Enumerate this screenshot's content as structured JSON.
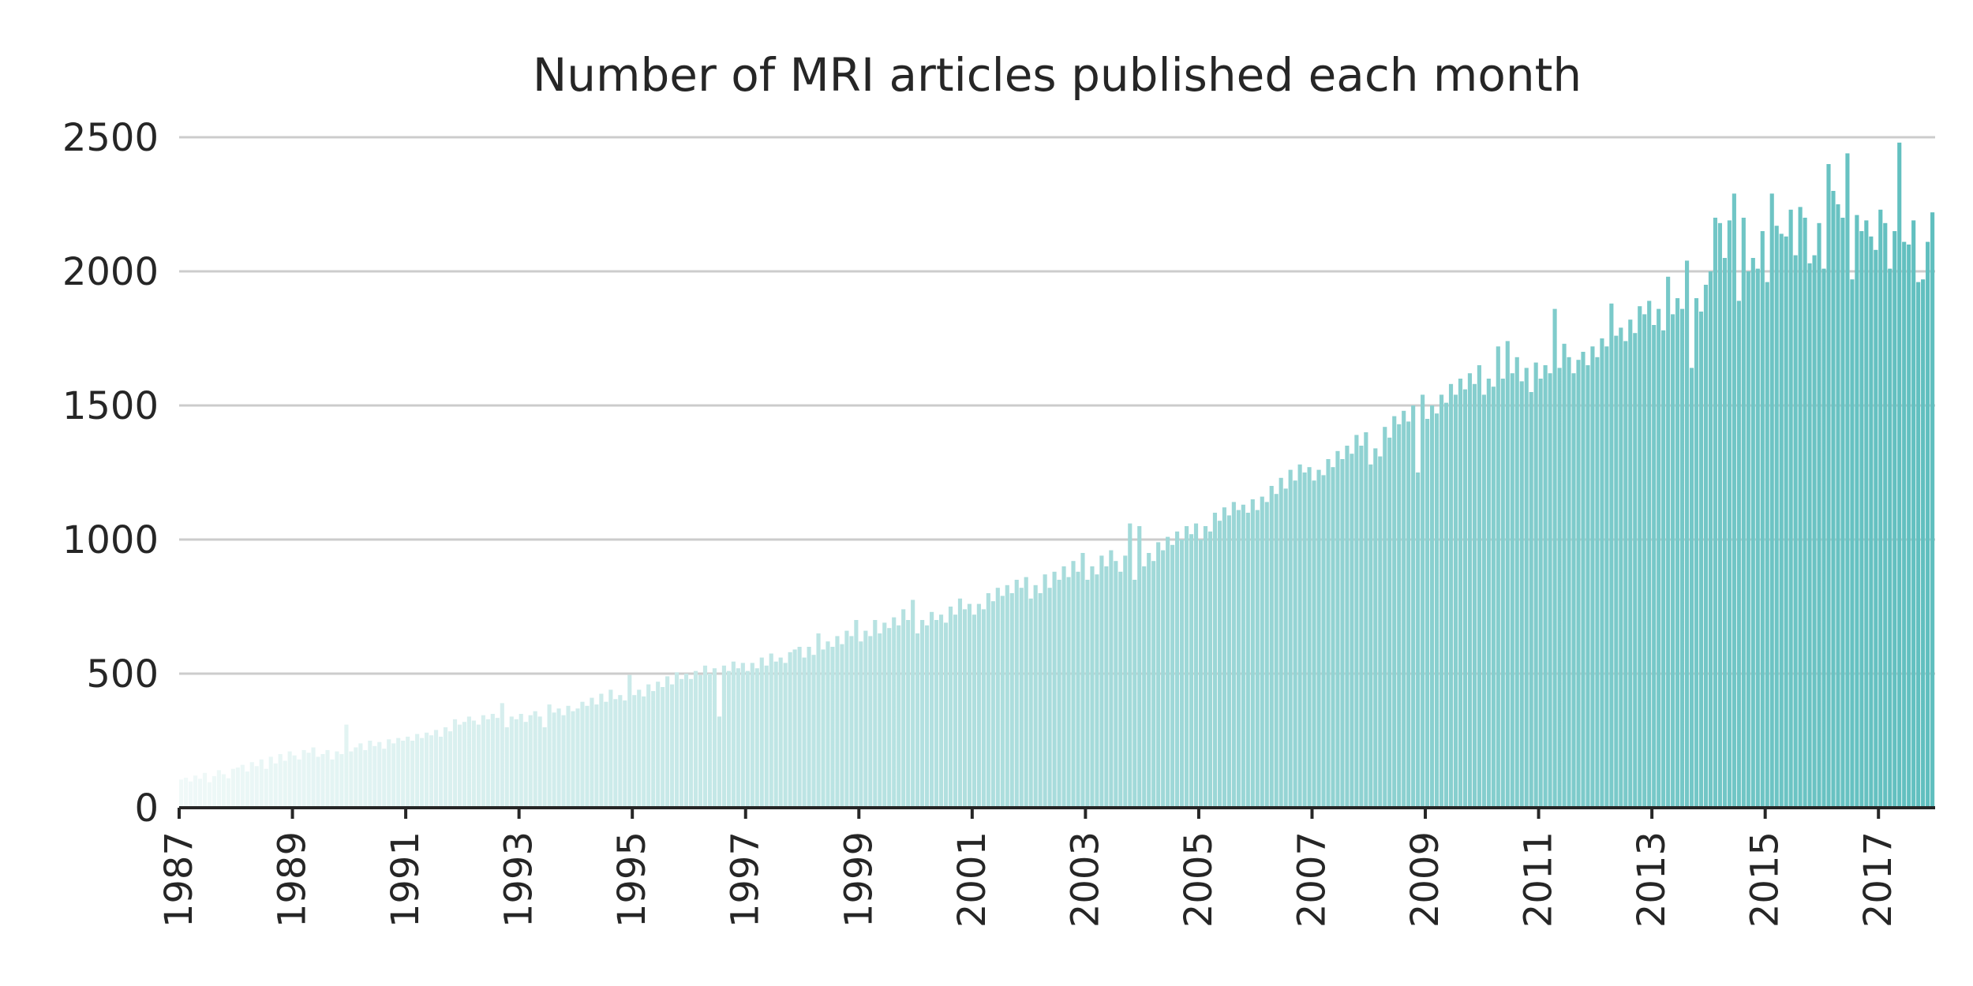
{
  "chart_data": {
    "type": "bar",
    "title": "Number of MRI articles published each month",
    "xlabel": "",
    "ylabel": "",
    "x_range": [
      "1987-01",
      "2017-12"
    ],
    "ylim": [
      0,
      2500
    ],
    "y_ticks": [
      "0",
      "500",
      "1000",
      "1500",
      "2000",
      "2500"
    ],
    "x_ticks": [
      "1987",
      "1989",
      "1991",
      "1993",
      "1995",
      "1997",
      "1999",
      "2001",
      "2003",
      "2005",
      "2007",
      "2009",
      "2011",
      "2013",
      "2015",
      "2017"
    ],
    "grid": "horizontal",
    "color_gradient": [
      "#f0f9f8",
      "#60bfbf"
    ],
    "grid_color": "#cccccc",
    "axis_color": "#262626",
    "series": [
      {
        "start": "1987-01",
        "interval": "month",
        "annual_monthly_values": {
          "1987": [
            105,
            112,
            98,
            120,
            108,
            130,
            95,
            118,
            140,
            125,
            110,
            145
          ],
          "1988": [
            150,
            160,
            135,
            170,
            155,
            180,
            145,
            190,
            165,
            200,
            175,
            210
          ],
          "1989": [
            195,
            180,
            215,
            205,
            225,
            190,
            200,
            215,
            180,
            210,
            200,
            310
          ],
          "1990": [
            210,
            225,
            240,
            215,
            250,
            230,
            245,
            220,
            255,
            240,
            260,
            250
          ],
          "1991": [
            265,
            250,
            275,
            260,
            280,
            270,
            290,
            265,
            300,
            285,
            330,
            310
          ],
          "1992": [
            320,
            340,
            325,
            310,
            345,
            330,
            350,
            335,
            390,
            300,
            340,
            330
          ],
          "1993": [
            350,
            320,
            345,
            360,
            340,
            300,
            385,
            355,
            370,
            345,
            380,
            360
          ],
          "1994": [
            370,
            395,
            380,
            410,
            385,
            425,
            395,
            440,
            405,
            420,
            400,
            495
          ],
          "1995": [
            420,
            440,
            415,
            460,
            435,
            470,
            450,
            490,
            460,
            505,
            480,
            500
          ],
          "1996": [
            480,
            510,
            495,
            530,
            500,
            520,
            340,
            530,
            510,
            545,
            520,
            540
          ],
          "1997": [
            510,
            540,
            520,
            560,
            530,
            575,
            545,
            560,
            540,
            580,
            590,
            600
          ],
          "1998": [
            560,
            600,
            570,
            650,
            590,
            620,
            600,
            640,
            610,
            660,
            640,
            700
          ],
          "1999": [
            620,
            660,
            640,
            700,
            650,
            690,
            670,
            710,
            680,
            740,
            700,
            775
          ],
          "2000": [
            650,
            700,
            680,
            730,
            700,
            720,
            690,
            750,
            720,
            780,
            740,
            760
          ],
          "2001": [
            720,
            760,
            740,
            800,
            770,
            820,
            790,
            830,
            800,
            850,
            820,
            860
          ],
          "2002": [
            780,
            830,
            800,
            870,
            820,
            880,
            850,
            900,
            860,
            920,
            880,
            950
          ],
          "2003": [
            850,
            900,
            870,
            940,
            900,
            960,
            920,
            880,
            940,
            1060,
            850,
            1050
          ],
          "2004": [
            900,
            950,
            920,
            990,
            960,
            1010,
            980,
            1030,
            1000,
            1050,
            1020,
            1060
          ],
          "2005": [
            1000,
            1050,
            1030,
            1100,
            1070,
            1120,
            1090,
            1140,
            1110,
            1130,
            1100,
            1150
          ],
          "2006": [
            1110,
            1160,
            1140,
            1200,
            1170,
            1230,
            1190,
            1260,
            1220,
            1280,
            1250,
            1270
          ],
          "2007": [
            1220,
            1260,
            1240,
            1300,
            1270,
            1330,
            1300,
            1350,
            1320,
            1390,
            1350,
            1400
          ],
          "2008": [
            1280,
            1340,
            1310,
            1420,
            1380,
            1460,
            1430,
            1480,
            1440,
            1500,
            1250,
            1540
          ],
          "2009": [
            1450,
            1500,
            1470,
            1540,
            1510,
            1580,
            1540,
            1600,
            1560,
            1620,
            1580,
            1650
          ],
          "2010": [
            1540,
            1600,
            1570,
            1720,
            1600,
            1740,
            1620,
            1680,
            1590,
            1640,
            1550,
            1660
          ],
          "2011": [
            1600,
            1650,
            1620,
            1860,
            1640,
            1730,
            1680,
            1620,
            1670,
            1700,
            1650,
            1720
          ],
          "2012": [
            1680,
            1750,
            1720,
            1880,
            1760,
            1790,
            1740,
            1820,
            1770,
            1870,
            1840,
            1890
          ],
          "2013": [
            1800,
            1860,
            1780,
            1980,
            1840,
            1900,
            1860,
            2040,
            1640,
            1900,
            1850,
            1950
          ],
          "2014": [
            2000,
            2200,
            2180,
            2050,
            2190,
            2290,
            1890,
            2200,
            2000,
            2050,
            2010,
            2150
          ],
          "2015": [
            1960,
            2290,
            2170,
            2140,
            2130,
            2230,
            2060,
            2240,
            2200,
            2030,
            2060,
            2180
          ],
          "2016": [
            2010,
            2400,
            2300,
            2250,
            2200,
            2440,
            1970,
            2210,
            2150,
            2190,
            2130,
            2080
          ],
          "2017": [
            2230,
            2180,
            2010,
            2150,
            2480,
            2110,
            2100,
            2190,
            1960,
            1970,
            2110,
            2220
          ]
        }
      }
    ]
  }
}
